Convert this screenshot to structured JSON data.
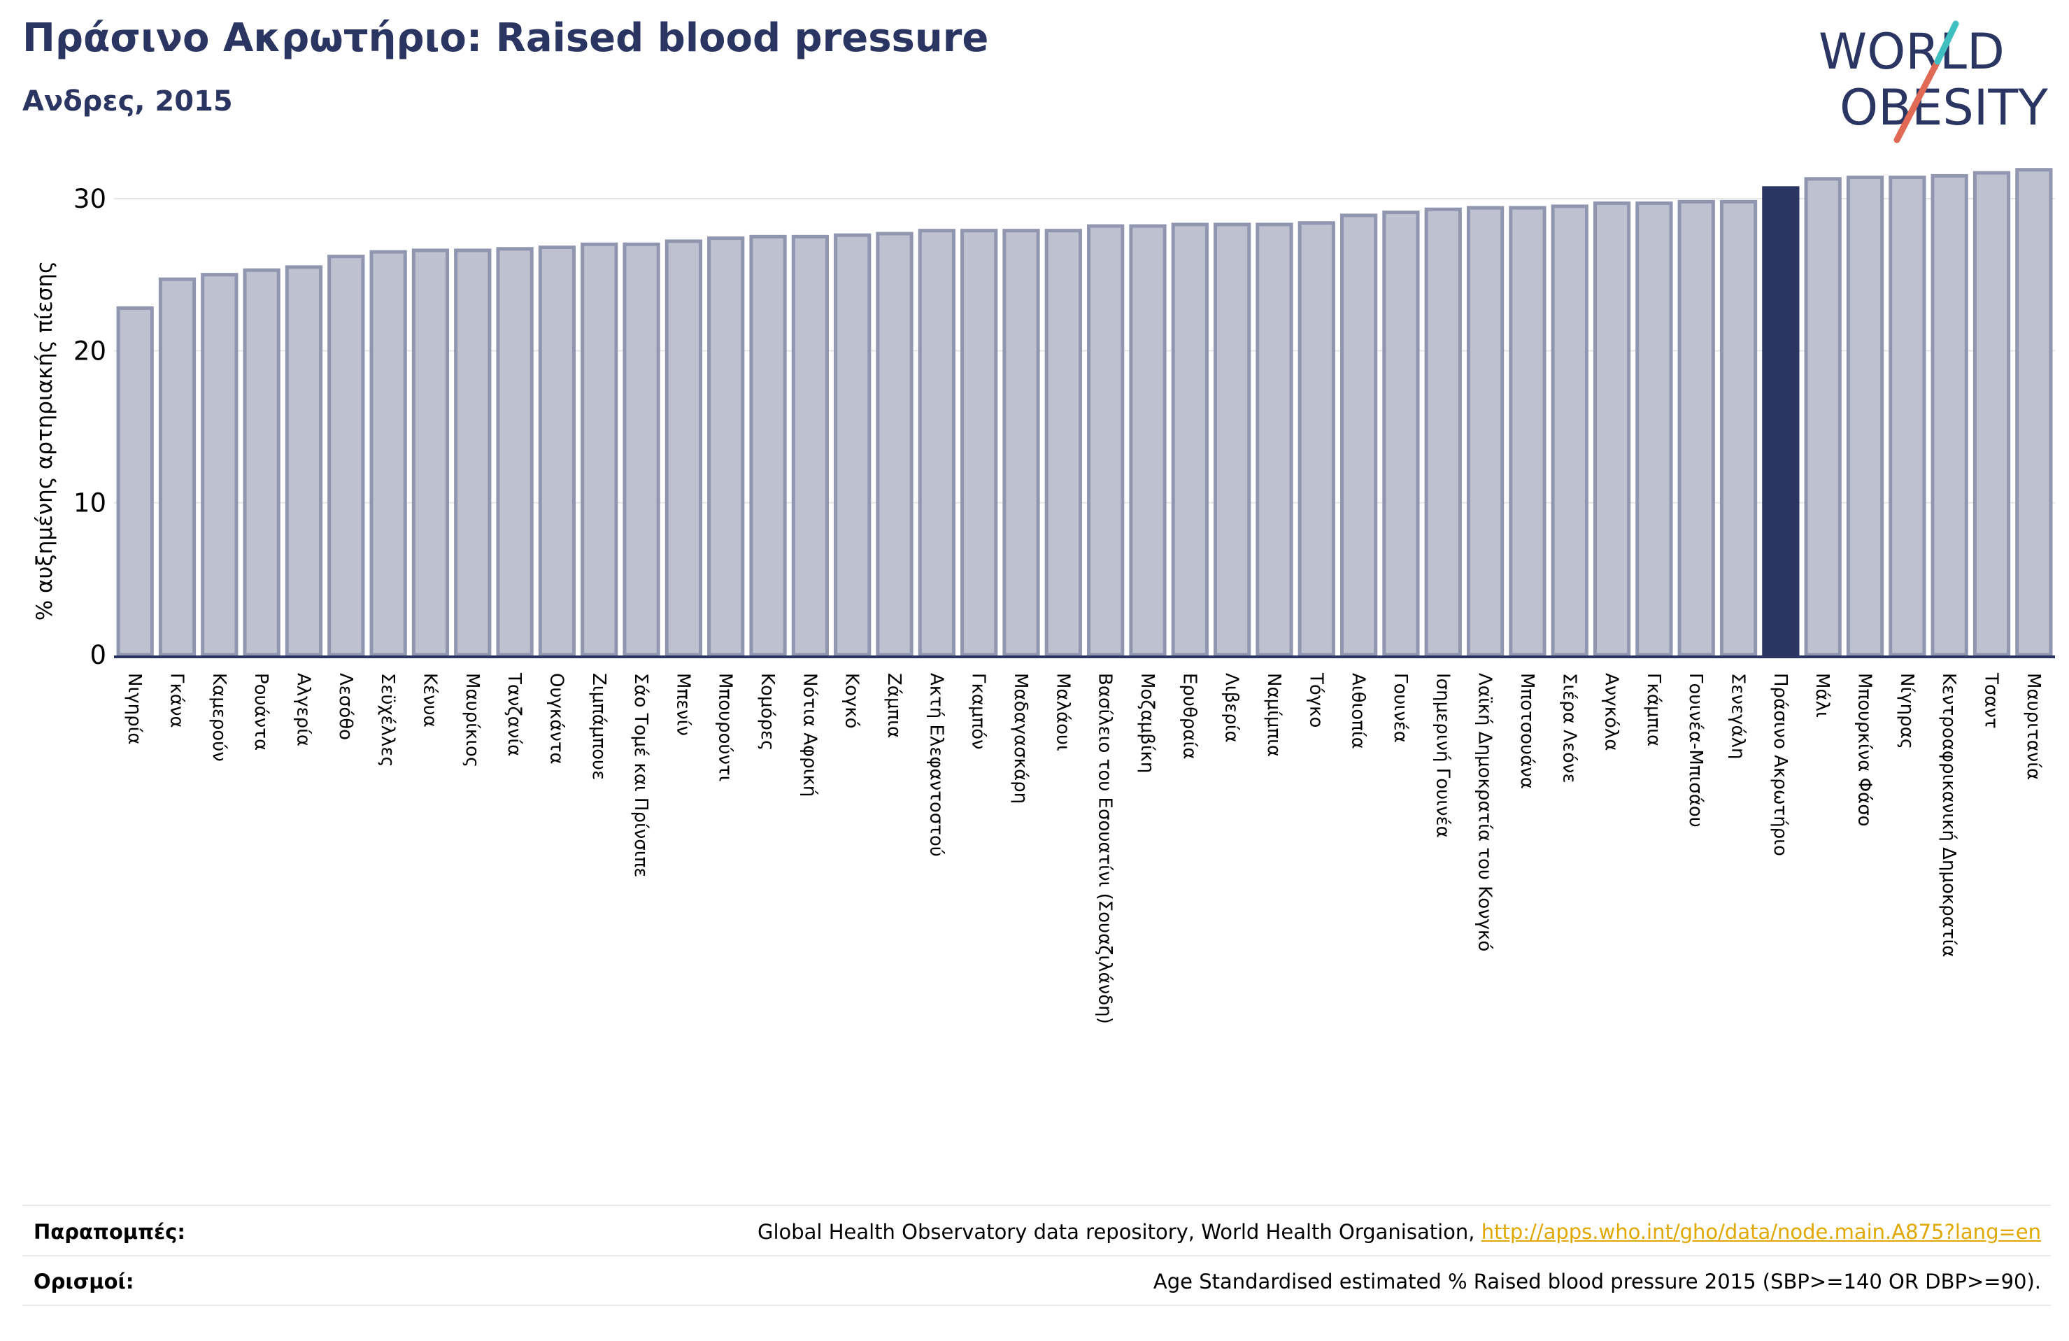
{
  "header": {
    "title": "Πράσινο Ακρωτήριο: Raised blood pressure",
    "subtitle": "Ανδρες, 2015"
  },
  "logo": {
    "line1": "WORLD",
    "line2": "OBESITY",
    "accent_color": "#e06a55",
    "accent2_color": "#3fbfbf",
    "text_color": "#2b3561"
  },
  "chart_data": {
    "type": "bar",
    "title": "",
    "ylabel": "% αυξημένης αρτηριακής πίεσης",
    "xlabel": "",
    "ylim": [
      0,
      32
    ],
    "yticks": [
      0,
      10,
      20,
      30
    ],
    "grid": true,
    "highlight": "Πράσινο Ακρωτήριο",
    "colors": {
      "bar": "#bec1cf",
      "bar_edge": "#9196b0",
      "highlight": "#2b3561"
    },
    "categories": [
      "Νιγηρία",
      "Γκάνα",
      "Καμερούν",
      "Ρουάντα",
      "Αλγερία",
      "Λεσόθο",
      "Σεϋχέλλες",
      "Κένυα",
      "Μαυρίκιος",
      "Τανζανία",
      "Ουγκάντα",
      "Ζιμπάμπουε",
      "Σάο Τομέ και Πρίνσιπε",
      "Μπενίν",
      "Μπουρούντι",
      "Κομόρες",
      "Νότια Αφρική",
      "Κογκό",
      "Ζάμπια",
      "Ακτή Ελεφαντοστού",
      "Γκαμπόν",
      "Μαδαγασκάρη",
      "Μαλάουι",
      "Βασίλειο του Εσουατίνι (Σουαζιλάνδη)",
      "Μοζαμβίκη",
      "Ερυθραία",
      "Λιβερία",
      "Ναμίμπια",
      "Τόγκο",
      "Αιθιοπία",
      "Γουινέα",
      "Ισημερινή Γουινέα",
      "Λαϊκή Δημοκρατία του Κονγκό",
      "Μποτσουάνα",
      "Σιέρα Λεόνε",
      "Ανγκόλα",
      "Γκάμπια",
      "Γουινέα-Μπισάου",
      "Σενεγάλη",
      "Πράσινο Ακρωτήριο",
      "Μάλι",
      "Μπουρκίνα Φάσο",
      "Νίγηρας",
      "Κεντροαφρικανική Δημοκρατία",
      "Τσαντ",
      "Μαυριτανία"
    ],
    "values": [
      22.8,
      24.7,
      25.0,
      25.3,
      25.5,
      26.2,
      26.5,
      26.6,
      26.6,
      26.7,
      26.8,
      27.0,
      27.0,
      27.2,
      27.4,
      27.5,
      27.5,
      27.6,
      27.7,
      27.9,
      27.9,
      27.9,
      27.9,
      28.2,
      28.2,
      28.3,
      28.3,
      28.3,
      28.4,
      28.9,
      29.1,
      29.3,
      29.4,
      29.4,
      29.5,
      29.7,
      29.7,
      29.8,
      29.8,
      30.7,
      31.3,
      31.4,
      31.4,
      31.5,
      31.7,
      31.9
    ]
  },
  "footer": {
    "refs_label": "Παραπομπές:",
    "refs_text": "Global Health Observatory data repository, World Health Organisation, ",
    "refs_link": "http://apps.who.int/gho/data/node.main.A875?lang=en",
    "defs_label": "Ορισμοί:",
    "defs_text": "Age Standardised estimated % Raised blood pressure 2015 (SBP>=140 OR DBP>=90)."
  }
}
